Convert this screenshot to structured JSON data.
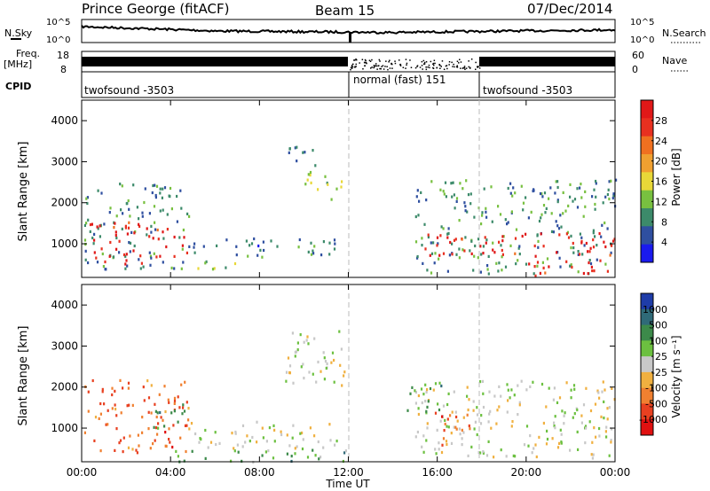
{
  "header": {
    "station": "Prince George (fitACF)",
    "beam": "Beam 15",
    "date": "07/Dec/2014"
  },
  "noise_panel": {
    "left_label": "N.Sky",
    "right_label": "N.Search",
    "left_ticks": [
      "10^5",
      "10^0"
    ],
    "right_ticks": [
      "10^5",
      "10^0"
    ]
  },
  "freq_panel": {
    "left_label_1": "Freq.",
    "left_label_2": "[MHz]",
    "left_ticks": [
      "18",
      "8"
    ],
    "right_label": "Nave",
    "right_ticks": [
      "60",
      "0"
    ]
  },
  "cpid_panel": {
    "label": "CPID",
    "segments": [
      {
        "text": "twofsound -3503",
        "start_hour": 0,
        "end_hour": 12
      },
      {
        "text": "normal (fast) 151",
        "start_hour": 12,
        "end_hour": 18
      },
      {
        "text": "twofsound -3503",
        "start_hour": 18,
        "end_hour": 24
      }
    ]
  },
  "power_panel": {
    "ylabel": "Slant Range [km]",
    "yticks": [
      "1000",
      "2000",
      "3000",
      "4000"
    ],
    "colorbar_label": "Power [dB]",
    "colorbar_ticks": [
      "4",
      "8",
      "12",
      "16",
      "20",
      "24",
      "28"
    ],
    "colors": [
      "#1a1aee",
      "#2f4fa0",
      "#3c8a6a",
      "#78c040",
      "#e8d838",
      "#f0a030",
      "#f07020",
      "#e83020",
      "#e01818"
    ]
  },
  "velocity_panel": {
    "ylabel": "Slant Range [km]",
    "yticks": [
      "1000",
      "2000",
      "3000",
      "4000"
    ],
    "colorbar_label": "Velocity [m s⁻¹]",
    "colorbar_ticks": [
      "1000",
      "500",
      "100",
      "25",
      "-25",
      "-100",
      "-500",
      "-1000"
    ],
    "colors": [
      "#1e3ca8",
      "#2f6a78",
      "#3c8a4a",
      "#6cc040",
      "#c8c8c8",
      "#f0b040",
      "#f08030",
      "#e84020",
      "#e01010"
    ]
  },
  "xaxis": {
    "label": "Time UT",
    "ticks": [
      "00:00",
      "04:00",
      "08:00",
      "12:00",
      "16:00",
      "20:00",
      "00:00"
    ]
  },
  "chart_data": {
    "type": "heatmap",
    "title": "Prince George (fitACF)",
    "subtitle": "Beam 15",
    "date": "07/Dec/2014",
    "xlabel": "Time UT",
    "ylabel": "Slant Range [km]",
    "xlim_hours": [
      0,
      24
    ],
    "ylim_km": [
      180,
      4500
    ],
    "power_scale_dB": [
      0,
      30
    ],
    "velocity_scale_ms": [
      -1000,
      1000
    ],
    "power_regions": [
      {
        "t0": 0.1,
        "t1": 4.8,
        "r0": 400,
        "r1": 2500,
        "level": 0.25
      },
      {
        "t0": 0.3,
        "t1": 3.0,
        "r0": 500,
        "r1": 1600,
        "level": 0.95
      },
      {
        "t0": 3.0,
        "t1": 4.8,
        "r0": 700,
        "r1": 1400,
        "level": 0.9
      },
      {
        "t0": 4.8,
        "t1": 11.5,
        "r0": 700,
        "r1": 1200,
        "level": 0.2
      },
      {
        "t0": 5.0,
        "t1": 7.0,
        "r0": 300,
        "r1": 600,
        "level": 0.4
      },
      {
        "t0": 9.0,
        "t1": 10.5,
        "r0": 2900,
        "r1": 3500,
        "level": 0.15
      },
      {
        "t0": 10.0,
        "t1": 11.8,
        "r0": 2100,
        "r1": 2800,
        "level": 0.45
      },
      {
        "t0": 15.0,
        "t1": 24.0,
        "r0": 300,
        "r1": 2600,
        "level": 0.25
      },
      {
        "t0": 15.3,
        "t1": 24.0,
        "r0": 700,
        "r1": 1300,
        "level": 0.95
      },
      {
        "t0": 20.0,
        "t1": 24.0,
        "r0": 250,
        "r1": 650,
        "level": 0.95
      }
    ],
    "velocity_regions": [
      {
        "t0": 0.1,
        "t1": 4.8,
        "r0": 400,
        "r1": 2200,
        "level": -0.6
      },
      {
        "t0": 3.2,
        "t1": 4.6,
        "r0": 1000,
        "r1": 1800,
        "level": 0.55
      },
      {
        "t0": 4.8,
        "t1": 11.5,
        "r0": 500,
        "r1": 1200,
        "level": 0.0
      },
      {
        "t0": 4.0,
        "t1": 12.0,
        "r0": 200,
        "r1": 500,
        "level": 0.35
      },
      {
        "t0": 9.0,
        "t1": 11.8,
        "r0": 2000,
        "r1": 3400,
        "level": 0.0
      },
      {
        "t0": 15.0,
        "t1": 24.0,
        "r0": 300,
        "r1": 2200,
        "level": 0.0
      },
      {
        "t0": 15.5,
        "t1": 17.5,
        "r0": 600,
        "r1": 1400,
        "level": -0.6
      },
      {
        "t0": 14.5,
        "t1": 16.5,
        "r0": 1400,
        "r1": 2200,
        "level": 0.35
      }
    ]
  }
}
